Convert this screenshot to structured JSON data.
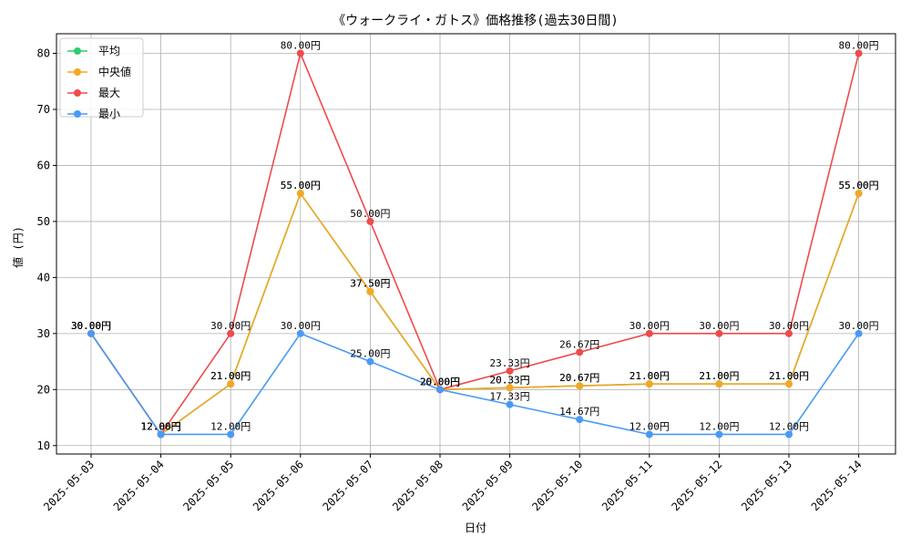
{
  "chart_data": {
    "type": "line",
    "title": "《ウォークライ・ガトス》価格推移(過去30日間)",
    "xlabel": "日付",
    "ylabel": "値 (円)",
    "ylim": [
      8.5,
      83.5
    ],
    "yticks": [
      10,
      20,
      30,
      40,
      50,
      60,
      70,
      80
    ],
    "grid": true,
    "legend_position": "top-left",
    "value_suffix": "円",
    "categories": [
      "2025-05-03",
      "2025-05-04",
      "2025-05-05",
      "2025-05-06",
      "2025-05-07",
      "2025-05-08",
      "2025-05-09",
      "2025-05-10",
      "2025-05-11",
      "2025-05-12",
      "2025-05-13",
      "2025-05-14"
    ],
    "series": [
      {
        "name": "平均",
        "color": "#2ecc71",
        "values": [
          30,
          12,
          21,
          55,
          37.5,
          20,
          20.33,
          20.67,
          21,
          21,
          21,
          55
        ]
      },
      {
        "name": "中央値",
        "color": "#f5a623",
        "values": [
          30,
          12,
          21,
          55,
          37.5,
          20,
          20.33,
          20.67,
          21,
          21,
          21,
          55
        ]
      },
      {
        "name": "最大",
        "color": "#ef4b4b",
        "values": [
          30,
          12,
          30,
          80,
          50,
          20,
          23.33,
          26.67,
          30,
          30,
          30,
          80
        ]
      },
      {
        "name": "最小",
        "color": "#4a9af5",
        "values": [
          30,
          12,
          12,
          30,
          25,
          20,
          17.33,
          14.67,
          12,
          12,
          12,
          30
        ]
      }
    ]
  }
}
